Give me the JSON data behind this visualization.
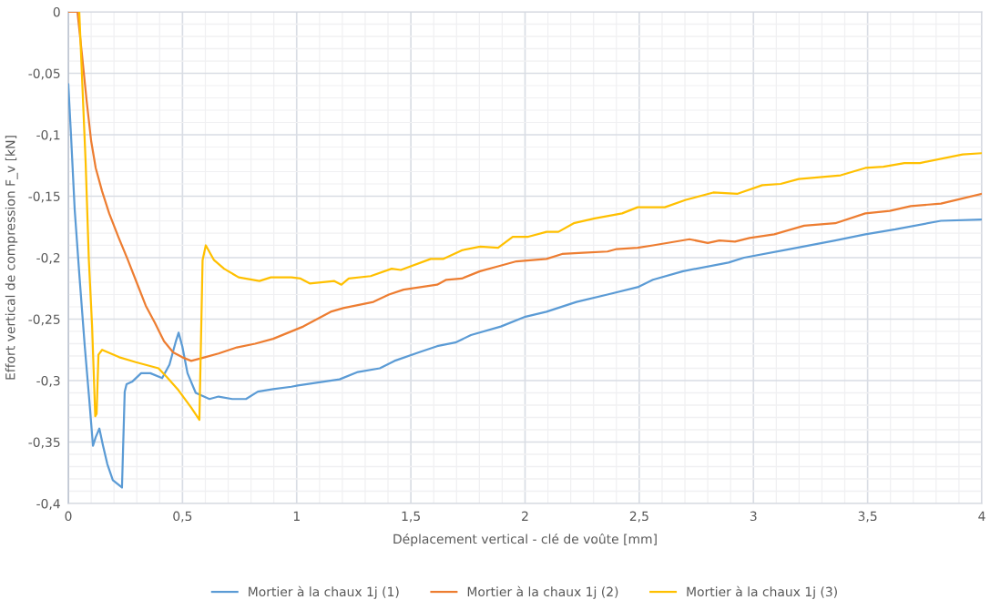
{
  "chart_data": {
    "type": "line",
    "xlabel": "Déplacement vertical - clé de voûte [mm]",
    "ylabel": "Effort vertical de compression F_v [kN]",
    "xlim": [
      0,
      4
    ],
    "ylim": [
      -0.4,
      0
    ],
    "xticks": [
      0,
      {
        "value": 0.5,
        "label": "0,5"
      },
      1,
      {
        "value": 1.5,
        "label": "1,5"
      },
      2,
      {
        "value": 2.5,
        "label": "2,5"
      },
      3,
      {
        "value": 3.5,
        "label": "3,5"
      },
      4
    ],
    "yticks": [
      {
        "value": -0.4,
        "label": "-0,4"
      },
      {
        "value": -0.35,
        "label": "-0,35"
      },
      {
        "value": -0.3,
        "label": "-0,3"
      },
      {
        "value": -0.25,
        "label": "-0,25"
      },
      {
        "value": -0.2,
        "label": "-0,2"
      },
      {
        "value": -0.15,
        "label": "-0,15"
      },
      {
        "value": -0.1,
        "label": "-0,1"
      },
      {
        "value": -0.05,
        "label": "-0,05"
      },
      0
    ],
    "grid": true,
    "legend": "bottom",
    "marker": "none",
    "line_style": "solid",
    "series": [
      {
        "name": "Mortier à la chaux 1j (1)",
        "color": "#5b9bd5",
        "x": [
          0,
          0.012,
          0.028,
          0.048,
          0.072,
          0.092,
          0.108,
          0.12,
          0.136,
          0.152,
          0.171,
          0.195,
          0.235,
          0.247,
          0.255,
          0.279,
          0.319,
          0.359,
          0.411,
          0.443,
          0.471,
          0.483,
          0.499,
          0.522,
          0.558,
          0.618,
          0.658,
          0.718,
          0.778,
          0.83,
          0.897,
          0.977,
          1.005,
          1.188,
          1.268,
          1.364,
          1.428,
          1.535,
          1.615,
          1.695,
          1.763,
          1.894,
          2.002,
          2.094,
          2.225,
          2.361,
          2.493,
          2.56,
          2.692,
          2.891,
          2.959,
          3.159,
          3.358,
          3.49,
          3.621,
          3.821,
          4.0
        ],
        "values": [
          -0.059,
          -0.101,
          -0.161,
          -0.213,
          -0.272,
          -0.316,
          -0.353,
          -0.346,
          -0.339,
          -0.353,
          -0.368,
          -0.381,
          -0.387,
          -0.309,
          -0.303,
          -0.301,
          -0.294,
          -0.294,
          -0.298,
          -0.287,
          -0.268,
          -0.261,
          -0.272,
          -0.294,
          -0.31,
          -0.315,
          -0.313,
          -0.315,
          -0.315,
          -0.309,
          -0.307,
          -0.305,
          -0.304,
          -0.299,
          -0.293,
          -0.29,
          -0.284,
          -0.277,
          -0.272,
          -0.269,
          -0.263,
          -0.256,
          -0.248,
          -0.244,
          -0.236,
          -0.23,
          -0.224,
          -0.218,
          -0.211,
          -0.204,
          -0.2,
          -0.193,
          -0.186,
          -0.181,
          -0.177,
          -0.17,
          -0.169
        ]
      },
      {
        "name": "Mortier à la chaux 1j (2)",
        "color": "#ed7d31",
        "x": [
          0,
          0.04,
          0.06,
          0.08,
          0.1,
          0.12,
          0.148,
          0.179,
          0.219,
          0.259,
          0.299,
          0.339,
          0.379,
          0.419,
          0.459,
          0.499,
          0.538,
          0.598,
          0.658,
          0.738,
          0.818,
          0.897,
          1.029,
          1.149,
          1.204,
          1.336,
          1.404,
          1.468,
          1.615,
          1.655,
          1.723,
          1.803,
          1.882,
          1.962,
          2.094,
          2.162,
          2.253,
          2.361,
          2.401,
          2.493,
          2.56,
          2.72,
          2.8,
          2.851,
          2.919,
          2.983,
          3.091,
          3.222,
          3.358,
          3.49,
          3.597,
          3.689,
          3.821,
          3.888,
          4.0
        ],
        "values": [
          0,
          0,
          -0.035,
          -0.072,
          -0.105,
          -0.127,
          -0.146,
          -0.164,
          -0.183,
          -0.201,
          -0.22,
          -0.239,
          -0.253,
          -0.268,
          -0.277,
          -0.281,
          -0.284,
          -0.281,
          -0.278,
          -0.273,
          -0.27,
          -0.266,
          -0.256,
          -0.244,
          -0.241,
          -0.236,
          -0.23,
          -0.226,
          -0.222,
          -0.218,
          -0.217,
          -0.211,
          -0.207,
          -0.203,
          -0.201,
          -0.197,
          -0.196,
          -0.195,
          -0.193,
          -0.192,
          -0.19,
          -0.185,
          -0.188,
          -0.186,
          -0.187,
          -0.184,
          -0.181,
          -0.174,
          -0.172,
          -0.164,
          -0.162,
          -0.158,
          -0.156,
          -0.153,
          -0.148
        ]
      },
      {
        "name": "Mortier à la chaux 1j (3)",
        "color": "#ffc000",
        "x": [
          0.048,
          0.076,
          0.09,
          0.104,
          0.118,
          0.124,
          0.132,
          0.148,
          0.223,
          0.295,
          0.395,
          0.431,
          0.483,
          0.538,
          0.574,
          0.588,
          0.602,
          0.638,
          0.682,
          0.746,
          0.837,
          0.887,
          0.977,
          1.017,
          1.057,
          1.165,
          1.196,
          1.228,
          1.324,
          1.416,
          1.456,
          1.587,
          1.643,
          1.723,
          1.803,
          1.882,
          1.946,
          2.014,
          2.094,
          2.146,
          2.213,
          2.305,
          2.425,
          2.493,
          2.612,
          2.704,
          2.824,
          2.931,
          3.039,
          3.119,
          3.198,
          3.382,
          3.49,
          3.569,
          3.661,
          3.729,
          3.916,
          4.0
        ],
        "values": [
          0,
          -0.123,
          -0.202,
          -0.255,
          -0.329,
          -0.327,
          -0.279,
          -0.275,
          -0.281,
          -0.285,
          -0.29,
          -0.297,
          -0.308,
          -0.322,
          -0.332,
          -0.202,
          -0.19,
          -0.202,
          -0.209,
          -0.216,
          -0.219,
          -0.216,
          -0.216,
          -0.217,
          -0.221,
          -0.219,
          -0.222,
          -0.217,
          -0.215,
          -0.209,
          -0.21,
          -0.201,
          -0.201,
          -0.194,
          -0.191,
          -0.192,
          -0.183,
          -0.183,
          -0.179,
          -0.179,
          -0.172,
          -0.168,
          -0.164,
          -0.159,
          -0.159,
          -0.153,
          -0.147,
          -0.148,
          -0.141,
          -0.14,
          -0.136,
          -0.133,
          -0.127,
          -0.126,
          -0.123,
          -0.123,
          -0.116,
          -0.115
        ]
      }
    ]
  }
}
